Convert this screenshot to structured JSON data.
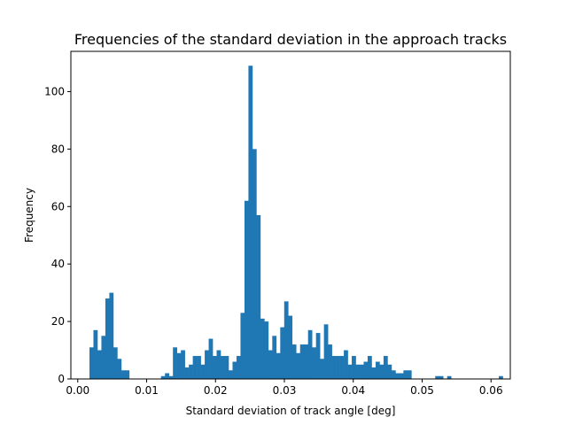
{
  "chart_data": {
    "type": "bar",
    "histogram": true,
    "title": "Frequencies of the standard deviation in the approach tracks",
    "xlabel": "Standard deviation of track angle [deg]",
    "ylabel": "Frequency",
    "xlim": [
      -0.001,
      0.0628
    ],
    "ylim": [
      0,
      114
    ],
    "grid": false,
    "bin_start": 0.0017,
    "bin_width": 0.000577,
    "values": [
      11,
      17,
      10,
      15,
      28,
      30,
      11,
      7,
      3,
      3,
      0,
      0,
      0,
      0,
      0,
      0,
      0,
      0,
      1,
      2,
      1,
      11,
      9,
      10,
      4,
      5,
      8,
      8,
      5,
      10,
      14,
      8,
      10,
      8,
      8,
      3,
      6,
      8,
      23,
      62,
      109,
      80,
      57,
      21,
      20,
      10,
      15,
      9,
      18,
      27,
      22,
      12,
      9,
      12,
      12,
      17,
      11,
      16,
      7,
      19,
      12,
      8,
      8,
      8,
      10,
      5,
      8,
      5,
      5,
      6,
      8,
      4,
      6,
      5,
      8,
      5,
      3,
      2,
      2,
      3,
      3,
      0,
      0,
      0,
      0,
      0,
      0,
      1,
      1,
      0,
      1,
      0,
      0,
      0,
      0,
      0,
      0,
      0,
      0,
      0,
      0,
      0,
      0,
      1,
      0
    ],
    "xticks": [
      0.0,
      0.01,
      0.02,
      0.03,
      0.04,
      0.05,
      0.06
    ],
    "xtick_labels": [
      "0.00",
      "0.01",
      "0.02",
      "0.03",
      "0.04",
      "0.05",
      "0.06"
    ],
    "yticks": [
      0,
      20,
      40,
      60,
      80,
      100
    ],
    "ytick_labels": [
      "0",
      "20",
      "40",
      "60",
      "80",
      "100"
    ],
    "bar_color": "#1f77b4"
  }
}
